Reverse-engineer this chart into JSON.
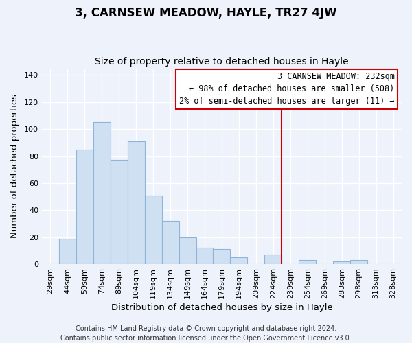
{
  "title": "3, CARNSEW MEADOW, HAYLE, TR27 4JW",
  "subtitle": "Size of property relative to detached houses in Hayle",
  "xlabel": "Distribution of detached houses by size in Hayle",
  "ylabel": "Number of detached properties",
  "bar_labels": [
    "29sqm",
    "44sqm",
    "59sqm",
    "74sqm",
    "89sqm",
    "104sqm",
    "119sqm",
    "134sqm",
    "149sqm",
    "164sqm",
    "179sqm",
    "194sqm",
    "209sqm",
    "224sqm",
    "239sqm",
    "254sqm",
    "269sqm",
    "283sqm",
    "298sqm",
    "313sqm",
    "328sqm"
  ],
  "bar_values": [
    0,
    19,
    85,
    105,
    77,
    91,
    51,
    32,
    20,
    12,
    11,
    5,
    0,
    7,
    0,
    3,
    0,
    2,
    3,
    0,
    0
  ],
  "bar_color": "#cfe0f3",
  "bar_edge_color": "#8eb4d9",
  "ylim": [
    0,
    145
  ],
  "yticks": [
    0,
    20,
    40,
    60,
    80,
    100,
    120,
    140
  ],
  "vline_color": "#cc0000",
  "vline_x_index": 14.0,
  "legend_title": "3 CARNSEW MEADOW: 232sqm",
  "legend_line1": "← 98% of detached houses are smaller (508)",
  "legend_line2": "2% of semi-detached houses are larger (11) →",
  "footer_line1": "Contains HM Land Registry data © Crown copyright and database right 2024.",
  "footer_line2": "Contains public sector information licensed under the Open Government Licence v3.0.",
  "background_color": "#eef2fb",
  "plot_bg_color": "#eef2fb",
  "grid_color": "#ffffff",
  "title_fontsize": 12,
  "subtitle_fontsize": 10,
  "axis_label_fontsize": 9.5,
  "tick_fontsize": 8,
  "footer_fontsize": 7,
  "legend_fontsize": 8.5
}
